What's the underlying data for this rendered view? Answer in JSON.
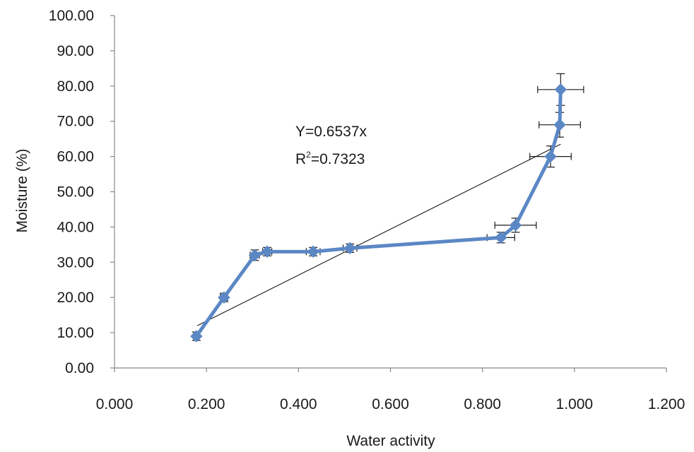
{
  "chart_data": {
    "type": "scatter",
    "title": "",
    "xlabel": "Water activity",
    "ylabel": "Moisture (%)",
    "xlim": [
      0,
      1.2
    ],
    "ylim": [
      0,
      100
    ],
    "x_ticks": [
      0,
      0.2,
      0.4,
      0.6,
      0.8,
      1.0,
      1.2
    ],
    "x_tick_labels": [
      "0.000",
      "0.200",
      "0.400",
      "0.600",
      "0.800",
      "1.000",
      "1.200"
    ],
    "y_ticks": [
      0,
      10,
      20,
      30,
      40,
      50,
      60,
      70,
      80,
      90,
      100
    ],
    "y_tick_labels": [
      "0.00",
      "10.00",
      "20.00",
      "30.00",
      "40.00",
      "50.00",
      "60.00",
      "70.00",
      "80.00",
      "90.00",
      "100.00"
    ],
    "grid": false,
    "legend": "none",
    "colors": {
      "series": "#5b87c5",
      "trendline": "#1a1a1a",
      "error_bars": "#1a1a1a",
      "axis": "#888888"
    },
    "series": [
      {
        "style": "line+diamond-markers",
        "points": [
          {
            "x": 0.178,
            "y": 9.0,
            "xerr": 0.006,
            "yerr": 1.2
          },
          {
            "x": 0.238,
            "y": 20.0,
            "xerr": 0.008,
            "yerr": 1.2
          },
          {
            "x": 0.305,
            "y": 32.0,
            "xerr": 0.01,
            "yerr": 1.5
          },
          {
            "x": 0.332,
            "y": 33.0,
            "xerr": 0.01,
            "yerr": 1.2
          },
          {
            "x": 0.432,
            "y": 33.0,
            "xerr": 0.015,
            "yerr": 1.2
          },
          {
            "x": 0.512,
            "y": 34.0,
            "xerr": 0.015,
            "yerr": 1.2
          },
          {
            "x": 0.84,
            "y": 37.0,
            "xerr": 0.03,
            "yerr": 1.5
          },
          {
            "x": 0.872,
            "y": 40.5,
            "xerr": 0.045,
            "yerr": 2.0
          },
          {
            "x": 0.948,
            "y": 60.0,
            "xerr": 0.045,
            "yerr": 3.0
          },
          {
            "x": 0.968,
            "y": 69.0,
            "xerr": 0.045,
            "yerr": 3.5
          },
          {
            "x": 0.97,
            "y": 79.0,
            "xerr": 0.05,
            "yerr": 4.5
          }
        ]
      }
    ],
    "trendline": {
      "x_start": 0.18,
      "y_start": 12.0,
      "x_end": 0.97,
      "y_end": 63.5
    },
    "annotations": {
      "equation": "Y=0.6537x",
      "r2_base": "R",
      "r2_sup": "2",
      "r2_value": "=0.7323"
    }
  }
}
